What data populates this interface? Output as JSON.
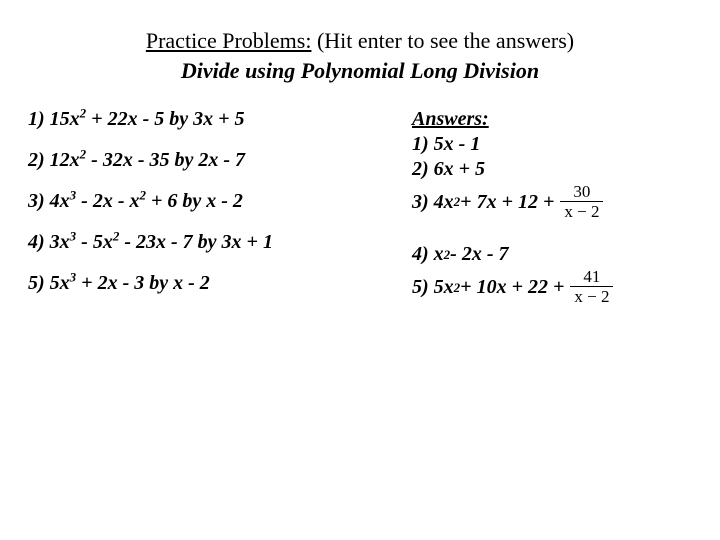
{
  "header": {
    "title_underlined": "Practice Problems:",
    "title_rest": " (Hit enter to see the answers)",
    "subtitle": "Divide using Polynomial Long Division"
  },
  "problems": {
    "p1_prefix": "1) 15x",
    "p1_exp": "2",
    "p1_rest": " + 22x - 5 by 3x + 5",
    "p2_prefix": "2) 12x",
    "p2_exp": "2",
    "p2_rest": " - 32x - 35 by 2x - 7",
    "p3_prefix": "3) 4x",
    "p3_exp": "3",
    "p3_mid": " - 2x - x",
    "p3_exp2": "2",
    "p3_rest": " + 6 by x - 2",
    "p4_prefix": "4) 3x",
    "p4_exp": "3",
    "p4_mid": " - 5x",
    "p4_exp2": "2",
    "p4_rest": " - 23x - 7 by 3x + 1",
    "p5_prefix": "5) 5x",
    "p5_exp": "3",
    "p5_rest": " + 2x - 3 by x - 2"
  },
  "answers": {
    "header": "Answers:",
    "a1": "1) 5x - 1",
    "a2": "2) 6x + 5",
    "a3_prefix": "3) 4x",
    "a3_exp": "2",
    "a3_rest": " + 7x + 12 + ",
    "a3_num": "30",
    "a3_den": "x − 2",
    "a4_prefix": "4) x",
    "a4_exp": "2",
    "a4_rest": " - 2x - 7",
    "a5_prefix": "5) 5x",
    "a5_exp": "2",
    "a5_rest": " + 10x + 22 + ",
    "a5_num": "41",
    "a5_den": "x − 2"
  },
  "style": {
    "background": "#ffffff",
    "text_color": "#000000",
    "font_family": "Times New Roman",
    "title_fontsize": 22,
    "body_fontsize": 20,
    "fraction_fontsize": 17
  }
}
